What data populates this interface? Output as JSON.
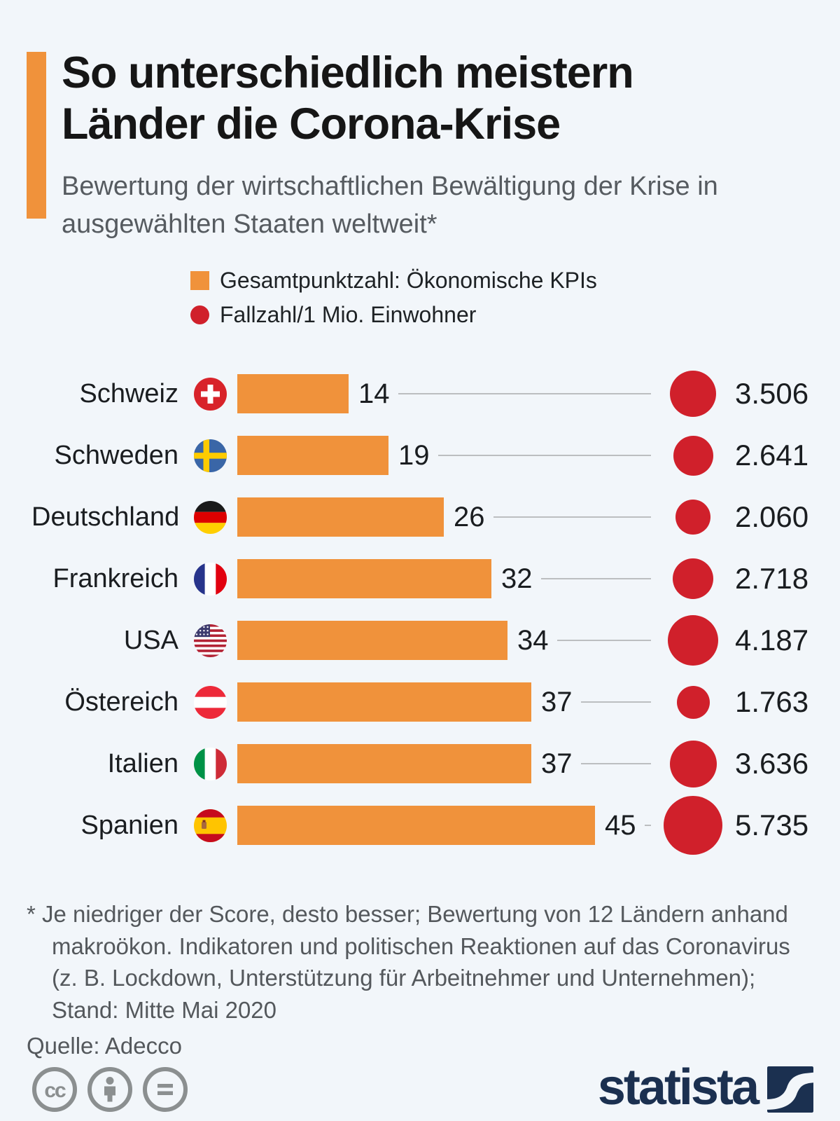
{
  "header": {
    "title": "So unterschiedlich meistern Länder die Corona-Krise",
    "subtitle": "Bewertung der wirtschaftlichen Bewältigung der Krise in ausgewählten Staaten weltweit*"
  },
  "legend": {
    "bar_label": "Gesamtpunktzahl: Ökonomische KPIs",
    "circle_label": "Fallzahl/1 Mio. Einwohner"
  },
  "chart_data": {
    "type": "bar",
    "categories": [
      "Schweiz",
      "Schweden",
      "Deutschland",
      "Frankreich",
      "USA",
      "Östereich",
      "Italien",
      "Spanien"
    ],
    "series": [
      {
        "name": "Gesamtpunktzahl: Ökonomische KPIs",
        "values": [
          14,
          19,
          26,
          32,
          34,
          37,
          37,
          45
        ]
      },
      {
        "name": "Fallzahl/1 Mio. Einwohner",
        "values": [
          3506,
          2641,
          2060,
          2718,
          4187,
          1763,
          3636,
          5735
        ],
        "value_labels": [
          "3.506",
          "2.641",
          "2.060",
          "2.718",
          "4.187",
          "1.763",
          "3.636",
          "5.735"
        ]
      }
    ],
    "flags": [
      "ch",
      "se",
      "de",
      "fr",
      "us",
      "at",
      "it",
      "es"
    ],
    "colors": {
      "bar": "#F0923B",
      "bubble": "#D0202B",
      "accent": "#F0923B"
    },
    "layout": {
      "bar_scale_note": "lower score is better",
      "legend_position": "top"
    }
  },
  "footer": {
    "footnote": "* Je niedriger der Score, desto besser; Bewertung von 12 Ländern anhand\nmakroökon. Indikatoren und politischen Reaktionen auf das Coronavirus\n(z. B. Lockdown, Unterstützung für Arbeitnehmer und Unternehmen);\nStand: Mitte Mai 2020",
    "source": "Quelle: Adecco",
    "brand": "statista"
  }
}
